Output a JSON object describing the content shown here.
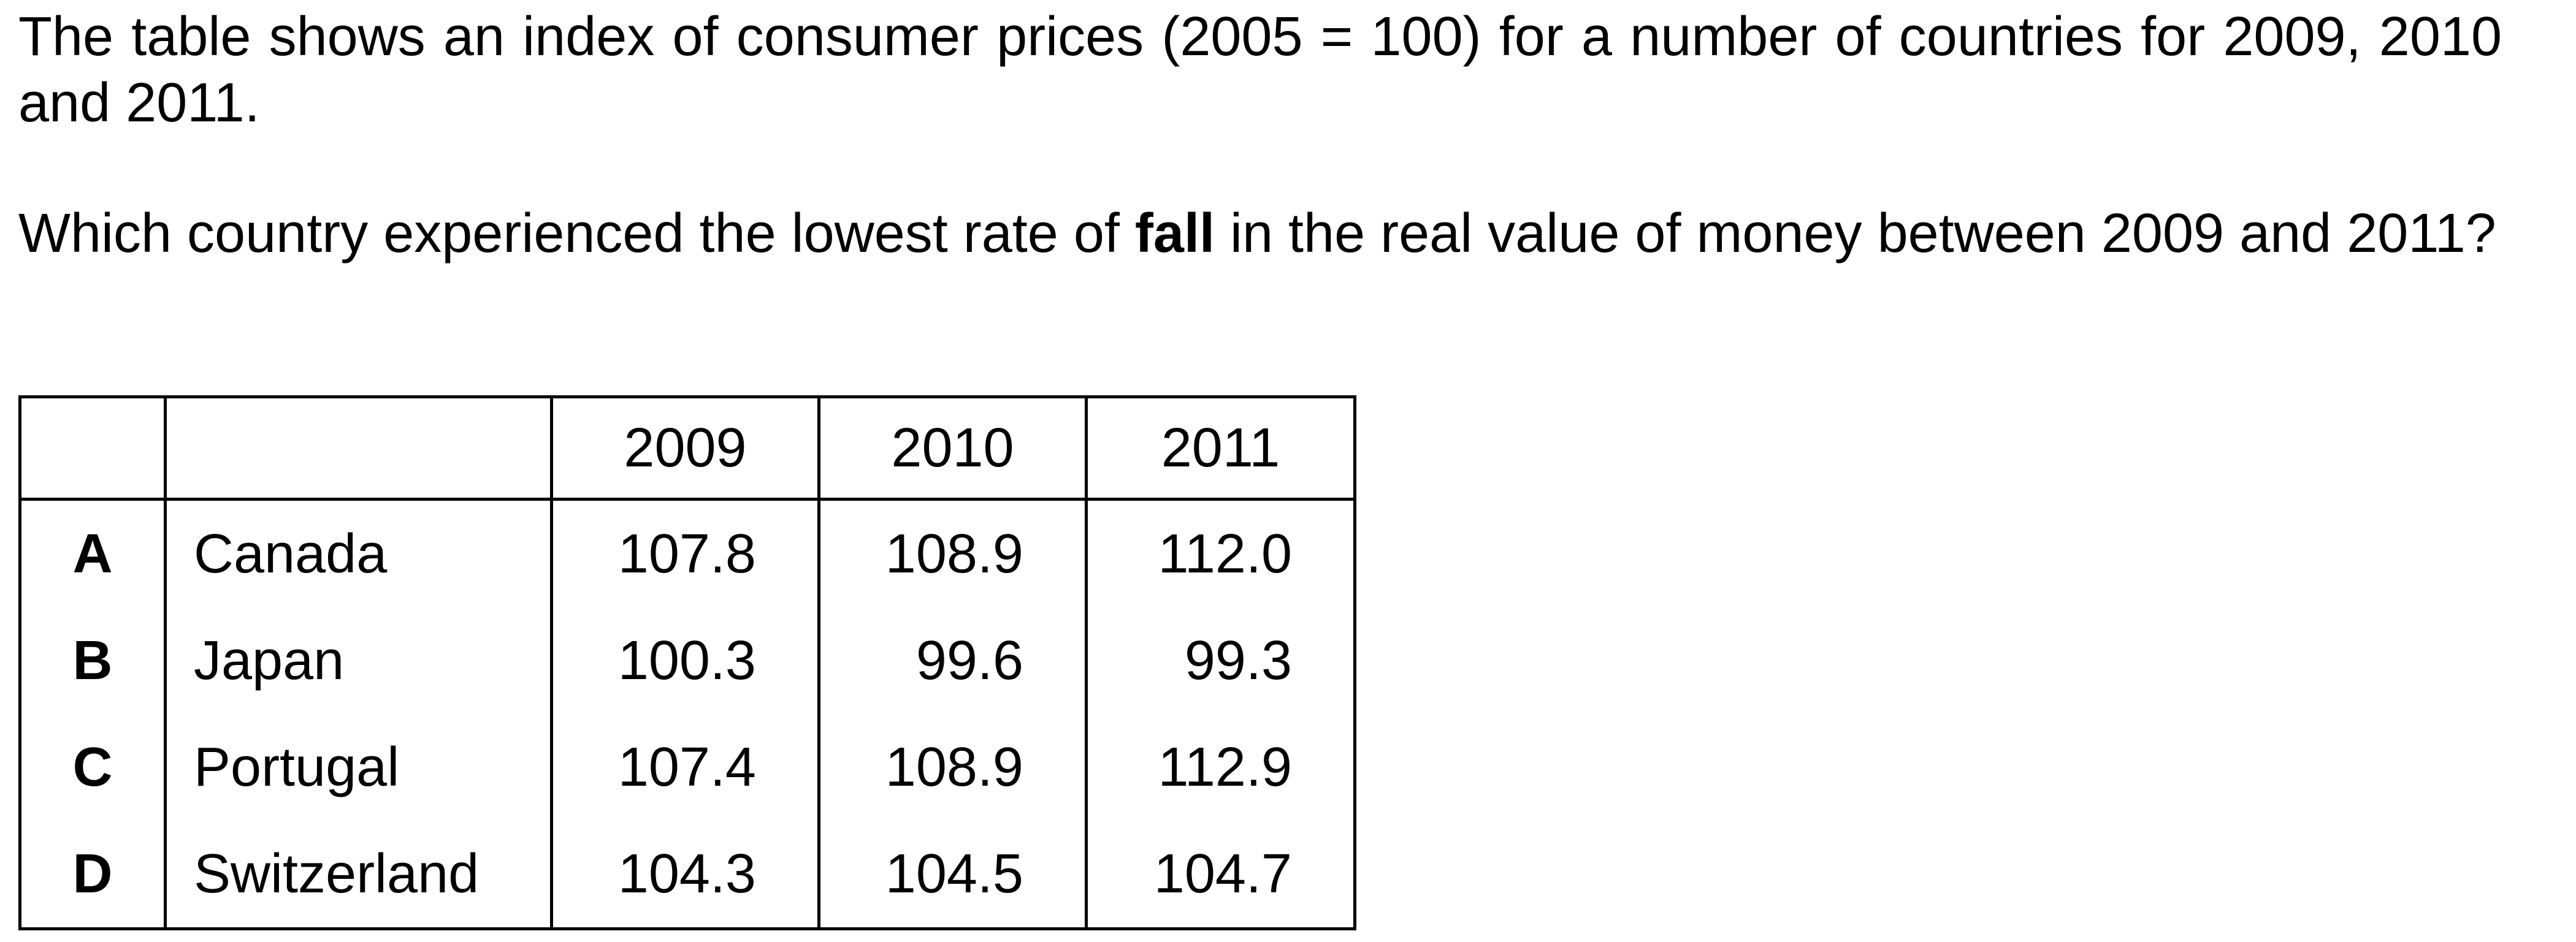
{
  "intro": {
    "text": "The table shows an index of consumer prices (2005 = 100) for a number of countries for 2009, 2010 and 2011."
  },
  "question": {
    "before": "Which country experienced the lowest rate of ",
    "emphasis": "fall",
    "after": " in the real value of money between 2009 and 2011?"
  },
  "table": {
    "years": [
      "2009",
      "2010",
      "2011"
    ],
    "rows": [
      {
        "option": "A",
        "country": "Canada",
        "values": [
          "107.8",
          "108.9",
          "112.0"
        ]
      },
      {
        "option": "B",
        "country": "Japan",
        "values": [
          "100.3",
          "99.6",
          "99.3"
        ]
      },
      {
        "option": "C",
        "country": "Portugal",
        "values": [
          "107.4",
          "108.9",
          "112.9"
        ]
      },
      {
        "option": "D",
        "country": "Switzerland",
        "values": [
          "104.3",
          "104.5",
          "104.7"
        ]
      }
    ]
  }
}
